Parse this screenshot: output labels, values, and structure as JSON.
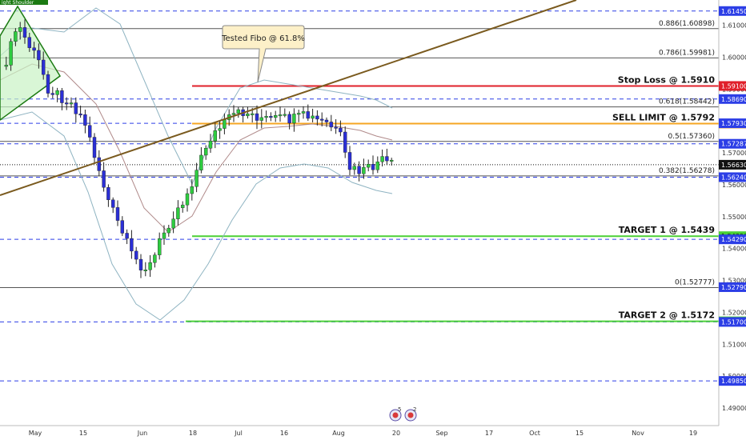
{
  "chart_data": {
    "type": "candlestick",
    "ylim": [
      1.487,
      1.6162
    ],
    "x_ticks": [
      "May",
      "15",
      "Jun",
      "18",
      "Jul",
      "16",
      "Aug",
      "20",
      "Sep",
      "17",
      "Oct",
      "15",
      "Nov",
      "19"
    ],
    "y_ticks": [
      "1.61000",
      "1.60000",
      "1.59000",
      "1.58000",
      "1.57000",
      "1.56000",
      "1.55000",
      "1.54000",
      "1.53000",
      "1.52000",
      "1.51000",
      "1.50000",
      "1.49000"
    ],
    "price_labels": [
      {
        "value": 1.6145,
        "text": "1.61450",
        "color": "#2c3ee6"
      },
      {
        "value": 1.591,
        "text": "1.59100",
        "color": "#e0202a"
      },
      {
        "value": 1.5869,
        "text": "1.58690",
        "color": "#2c3ee6"
      },
      {
        "value": 1.5792,
        "text": "1.57920",
        "color": "#f5a623"
      },
      {
        "value": 1.5793,
        "text": "1.57930",
        "color": "#2c3ee6"
      },
      {
        "value": 1.57287,
        "text": "1.57287",
        "color": "#2c3ee6"
      },
      {
        "value": 1.5663,
        "text": "1.56630",
        "color": "#111111"
      },
      {
        "value": 1.5624,
        "text": "1.56240",
        "color": "#2c3ee6"
      },
      {
        "value": 1.5439,
        "text": "1.54390",
        "color": "#4cd137"
      },
      {
        "value": 1.5429,
        "text": "1.54290",
        "color": "#2c3ee6"
      },
      {
        "value": 1.5279,
        "text": "1.52790",
        "color": "#2c3ee6"
      },
      {
        "value": 1.5172,
        "text": "1.51720",
        "color": "#4cd137"
      },
      {
        "value": 1.517,
        "text": "1.51700",
        "color": "#2c3ee6"
      },
      {
        "value": 1.4985,
        "text": "1.49850",
        "color": "#2c3ee6"
      }
    ],
    "fib_levels": [
      {
        "ratio": "0.886",
        "value": 1.60898,
        "text": "0.886(1.60898)"
      },
      {
        "ratio": "0.786",
        "value": 1.59981,
        "text": "0.786(1.59981)"
      },
      {
        "ratio": "0.618",
        "value": 1.58442,
        "text": "0.618(1.58442)"
      },
      {
        "ratio": "0.5",
        "value": 1.5736,
        "text": "0.5(1.57360)"
      },
      {
        "ratio": "0.382",
        "value": 1.56278,
        "text": "0.382(1.56278)"
      },
      {
        "ratio": "0",
        "value": 1.52777,
        "text": "0(1.52777)"
      }
    ],
    "dashed_levels": [
      1.6145,
      1.5869,
      1.5793,
      1.57287,
      1.5624,
      1.5429,
      1.517,
      1.4985
    ],
    "trade_levels": [
      {
        "label": "Stop Loss @ 1.5910",
        "value": 1.591,
        "color": "#e0202a"
      },
      {
        "label": "SELL LIMIT @ 1.5792",
        "value": 1.5792,
        "color": "#f5a623"
      },
      {
        "label": "TARGET 1 @ 1.5439",
        "value": 1.5439,
        "color": "#4cd137"
      },
      {
        "label": "TARGET 2 @ 1.5172",
        "value": 1.5172,
        "color": "#4cd137"
      }
    ],
    "current_price": 1.5663,
    "callout": "Tested Fibo @ 61.8%",
    "pattern_label": "ight Shoulder",
    "event_badges": [
      "5",
      "2"
    ],
    "colors": {
      "up": "#2ecc40",
      "down": "#2b2fd6",
      "trendline": "#7a5a1e",
      "bollinger_outer": "#8fb4c2",
      "bollinger_mid": "#b08a8a"
    }
  }
}
